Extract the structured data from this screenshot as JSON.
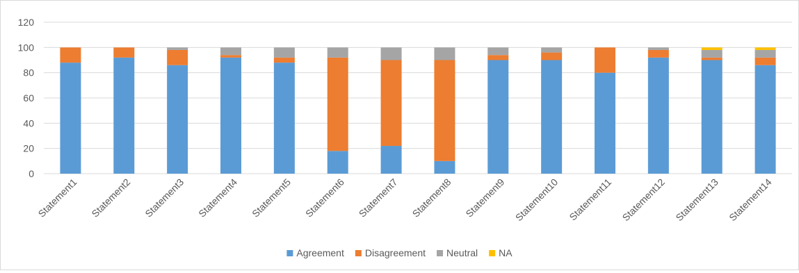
{
  "chart_data": {
    "type": "bar",
    "stacked": true,
    "title": "",
    "xlabel": "",
    "ylabel": "",
    "ylim": [
      0,
      120
    ],
    "yticks": [
      0,
      20,
      40,
      60,
      80,
      100,
      120
    ],
    "grid": true,
    "legend_position": "bottom",
    "categories": [
      "Statement1",
      "Statement2",
      "Statement3",
      "Statement4",
      "Statement5",
      "Statement6",
      "Statement7",
      "Statement8",
      "Statement9",
      "Statement10",
      "Statement11",
      "Statement12",
      "Statement13",
      "Statement14"
    ],
    "series": [
      {
        "name": "Agreement",
        "color": "#5b9bd5",
        "values": [
          88,
          92,
          86,
          92,
          88,
          18,
          22,
          10,
          90,
          90,
          80,
          92,
          90,
          86
        ]
      },
      {
        "name": "Disagreement",
        "color": "#ed7d31",
        "values": [
          12,
          8,
          12,
          2,
          4,
          74,
          68,
          80,
          4,
          6,
          20,
          6,
          2,
          6
        ]
      },
      {
        "name": "Neutral",
        "color": "#a5a5a5",
        "values": [
          0,
          0,
          2,
          6,
          8,
          8,
          10,
          10,
          6,
          4,
          0,
          2,
          6,
          6
        ]
      },
      {
        "name": "NA",
        "color": "#ffc000",
        "values": [
          0,
          0,
          0,
          0,
          0,
          0,
          0,
          0,
          0,
          0,
          0,
          0,
          2,
          2
        ]
      }
    ]
  }
}
